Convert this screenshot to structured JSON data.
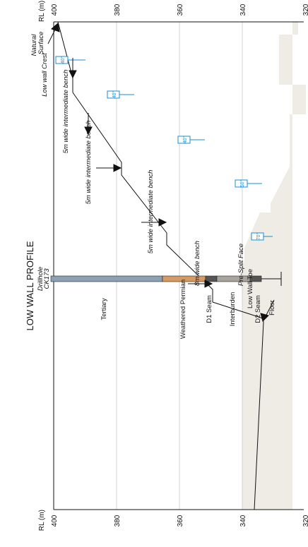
{
  "title": "LOW WALL PROFILE",
  "axis_label": "RL (m)",
  "rl_ticks": [
    "400",
    "380",
    "360",
    "340",
    "320"
  ],
  "drillhole": {
    "name_line1": "Drillhole",
    "name_line2": "CK173"
  },
  "layers": [
    {
      "name": "Tertiary",
      "color": "#8ca0b6"
    },
    {
      "name": "Weathered Permian",
      "color": "#d79a63"
    },
    {
      "name": "D1 Seam",
      "color": "#555555"
    },
    {
      "name": "Interburden",
      "color": "#a8a39c"
    },
    {
      "name": "D2 Seam",
      "color": "#555555"
    },
    {
      "name": "Floor",
      "color": ""
    }
  ],
  "annotations": {
    "natural_surface_1": "Natural",
    "natural_surface_2": "Surface",
    "low_wall_crest": "Low wall Crest",
    "bench_1": "5m wide intermediate bench",
    "bench_2": "5m wide intermediate bench",
    "bench_3": "5m wide intermediate bench",
    "bench_4": "8m wide bench",
    "pre_split": "Pre-Split Face",
    "low_wall_toe": "Low Wall Toe"
  },
  "angles": [
    "40°",
    "40°",
    "40°",
    "50°",
    "70°"
  ],
  "colors": {
    "ground": "#efebe5",
    "accent": "#1a8fd0",
    "grid": "#c8c8c8"
  }
}
